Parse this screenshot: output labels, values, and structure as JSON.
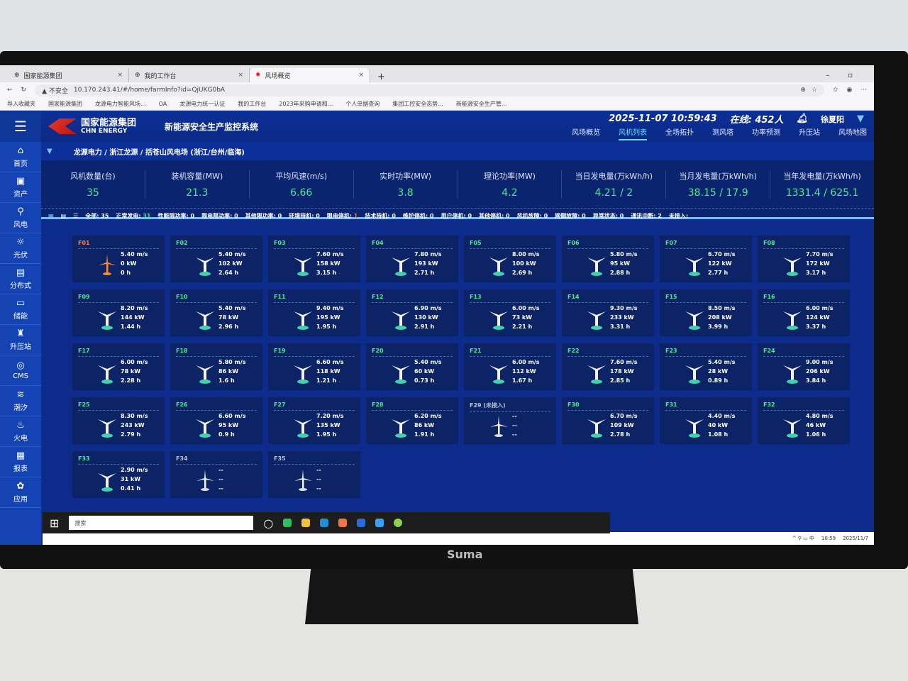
{
  "browser": {
    "tabs": [
      {
        "label": "国家能源集团"
      },
      {
        "label": "我的工作台"
      },
      {
        "label": "风场概览"
      }
    ],
    "insecure": "▲ 不安全",
    "url": "10.170.243.41/#/home/farmInfo?id=QjUKG0bA",
    "bookmarks": [
      "导入收藏夹",
      "国家能源集团",
      "龙源电力智能风场...",
      "OA",
      "龙源电力统一认证",
      "我的工作台",
      "2023年采购申请和...",
      "个人单据查询",
      "集团工控安全态势...",
      "新能源安全生产管..."
    ]
  },
  "header": {
    "logo_cn": "国家能源集团",
    "logo_en": "CHN ENERGY",
    "system": "新能源安全生产监控系统",
    "datetime": "2025-11-07 10:59:43",
    "online": "在线: 452人",
    "user": "徐夏阳"
  },
  "nav": [
    "风场概览",
    "风机列表",
    "全场拓扑",
    "测风塔",
    "功率预测",
    "升压站",
    "风场地图"
  ],
  "nav_active": "风机列表",
  "sidebar": [
    {
      "label": "首页",
      "icon": "home-icon",
      "g": "⌂"
    },
    {
      "label": "资产",
      "icon": "monitor-icon",
      "g": "▣"
    },
    {
      "label": "风电",
      "icon": "wind-turbine-icon",
      "g": "⚲"
    },
    {
      "label": "光伏",
      "icon": "sun-icon",
      "g": "☼"
    },
    {
      "label": "分布式",
      "icon": "solar-panel-icon",
      "g": "▤"
    },
    {
      "label": "储能",
      "icon": "battery-icon",
      "g": "▭"
    },
    {
      "label": "升压站",
      "icon": "substation-icon",
      "g": "♜"
    },
    {
      "label": "CMS",
      "icon": "cms-icon",
      "g": "◎"
    },
    {
      "label": "潮汐",
      "icon": "tide-icon",
      "g": "≋"
    },
    {
      "label": "火电",
      "icon": "thermal-icon",
      "g": "♨"
    },
    {
      "label": "报表",
      "icon": "report-icon",
      "g": "▦"
    },
    {
      "label": "应用",
      "icon": "apps-icon",
      "g": "✿"
    }
  ],
  "breadcrumb": "龙源电力 / 浙江龙源 / 括苍山风电场 (浙江/台州/临海)",
  "stats": [
    {
      "label": "风机数量(台)",
      "value": "35"
    },
    {
      "label": "装机容量(MW)",
      "value": "21.3"
    },
    {
      "label": "平均风速(m/s)",
      "value": "6.66"
    },
    {
      "label": "实时功率(MW)",
      "value": "3.8"
    },
    {
      "label": "理论功率(MW)",
      "value": "4.2"
    },
    {
      "label": "当日发电量(万kWh/h)",
      "value": "4.21 / 2"
    },
    {
      "label": "当月发电量(万kWh/h)",
      "value": "38.15 / 17.9"
    },
    {
      "label": "当年发电量(万kWh/h)",
      "value": "1331.4 / 625.1"
    }
  ],
  "status": [
    {
      "label": "全部:",
      "value": "35",
      "c": ""
    },
    {
      "label": "正常发电:",
      "value": "31",
      "c": "g"
    },
    {
      "label": "性能限功率:",
      "value": "0",
      "c": ""
    },
    {
      "label": "限电限功率:",
      "value": "0",
      "c": ""
    },
    {
      "label": "其他限功率:",
      "value": "0",
      "c": ""
    },
    {
      "label": "环境待机:",
      "value": "0",
      "c": ""
    },
    {
      "label": "限电停机:",
      "value": "1",
      "c": "o"
    },
    {
      "label": "技术待机:",
      "value": "0",
      "c": ""
    },
    {
      "label": "维护停机:",
      "value": "0",
      "c": ""
    },
    {
      "label": "用户停机:",
      "value": "0",
      "c": ""
    },
    {
      "label": "其他停机:",
      "value": "0",
      "c": ""
    },
    {
      "label": "风机故障:",
      "value": "0",
      "c": ""
    },
    {
      "label": "网侧故障:",
      "value": "0",
      "c": ""
    },
    {
      "label": "异常状态:",
      "value": "0",
      "c": ""
    },
    {
      "label": "通讯中断:",
      "value": "2",
      "c": ""
    },
    {
      "label": "未接入:",
      "value": "",
      "c": ""
    }
  ],
  "colors": {
    "normal": "#4dea8e",
    "stopped": "#ff7a3a",
    "offline": "#b8c0d8",
    "accent": "#5ee0ff"
  },
  "turbines": [
    {
      "id": "F01",
      "s": "stopped",
      "v": [
        "5.40 m/s",
        "0 kW",
        "0 h"
      ]
    },
    {
      "id": "F02",
      "s": "normal",
      "v": [
        "5.40 m/s",
        "102 kW",
        "2.64 h"
      ]
    },
    {
      "id": "F03",
      "s": "normal",
      "v": [
        "7.60 m/s",
        "158 kW",
        "3.15 h"
      ]
    },
    {
      "id": "F04",
      "s": "normal",
      "v": [
        "7.80 m/s",
        "193 kW",
        "2.71 h"
      ]
    },
    {
      "id": "F05",
      "s": "normal",
      "v": [
        "8.00 m/s",
        "100 kW",
        "2.69 h"
      ]
    },
    {
      "id": "F06",
      "s": "normal",
      "v": [
        "5.80 m/s",
        "95 kW",
        "2.88 h"
      ]
    },
    {
      "id": "F07",
      "s": "normal",
      "v": [
        "6.70 m/s",
        "122 kW",
        "2.77 h"
      ]
    },
    {
      "id": "F08",
      "s": "normal",
      "v": [
        "7.70 m/s",
        "172 kW",
        "3.17 h"
      ]
    },
    {
      "id": "F09",
      "s": "normal",
      "v": [
        "8.20 m/s",
        "144 kW",
        "1.44 h"
      ]
    },
    {
      "id": "F10",
      "s": "normal",
      "v": [
        "5.40 m/s",
        "78 kW",
        "2.96 h"
      ]
    },
    {
      "id": "F11",
      "s": "normal",
      "v": [
        "9.40 m/s",
        "195 kW",
        "1.95 h"
      ]
    },
    {
      "id": "F12",
      "s": "normal",
      "v": [
        "6.90 m/s",
        "130 kW",
        "2.91 h"
      ]
    },
    {
      "id": "F13",
      "s": "normal",
      "v": [
        "6.00 m/s",
        "73 kW",
        "2.21 h"
      ]
    },
    {
      "id": "F14",
      "s": "normal",
      "v": [
        "9.30 m/s",
        "233 kW",
        "3.31 h"
      ]
    },
    {
      "id": "F15",
      "s": "normal",
      "v": [
        "8.50 m/s",
        "208 kW",
        "3.99 h"
      ]
    },
    {
      "id": "F16",
      "s": "normal",
      "v": [
        "6.00 m/s",
        "124 kW",
        "3.37 h"
      ]
    },
    {
      "id": "F17",
      "s": "normal",
      "v": [
        "6.00 m/s",
        "78 kW",
        "2.28 h"
      ]
    },
    {
      "id": "F18",
      "s": "normal",
      "v": [
        "5.80 m/s",
        "86 kW",
        "1.6 h"
      ]
    },
    {
      "id": "F19",
      "s": "normal",
      "v": [
        "6.60 m/s",
        "118 kW",
        "1.21 h"
      ]
    },
    {
      "id": "F20",
      "s": "normal",
      "v": [
        "5.40 m/s",
        "60 kW",
        "0.73 h"
      ]
    },
    {
      "id": "F21",
      "s": "normal",
      "v": [
        "6.00 m/s",
        "112 kW",
        "1.67 h"
      ]
    },
    {
      "id": "F22",
      "s": "normal",
      "v": [
        "7.60 m/s",
        "178 kW",
        "2.85 h"
      ]
    },
    {
      "id": "F23",
      "s": "normal",
      "v": [
        "5.40 m/s",
        "28 kW",
        "0.89 h"
      ]
    },
    {
      "id": "F24",
      "s": "normal",
      "v": [
        "9.00 m/s",
        "206 kW",
        "3.84 h"
      ]
    },
    {
      "id": "F25",
      "s": "normal",
      "v": [
        "8.30 m/s",
        "243 kW",
        "2.79 h"
      ]
    },
    {
      "id": "F26",
      "s": "normal",
      "v": [
        "6.60 m/s",
        "95 kW",
        "0.9 h"
      ]
    },
    {
      "id": "F27",
      "s": "normal",
      "v": [
        "7.20 m/s",
        "135 kW",
        "1.95 h"
      ]
    },
    {
      "id": "F28",
      "s": "normal",
      "v": [
        "6.20 m/s",
        "86 kW",
        "1.91 h"
      ]
    },
    {
      "id": "F29 (未接入)",
      "s": "offline",
      "v": [
        "--",
        "--",
        "--"
      ]
    },
    {
      "id": "F30",
      "s": "normal",
      "v": [
        "6.70 m/s",
        "109 kW",
        "2.78 h"
      ]
    },
    {
      "id": "F31",
      "s": "normal",
      "v": [
        "4.40 m/s",
        "40 kW",
        "1.08 h"
      ]
    },
    {
      "id": "F32",
      "s": "normal",
      "v": [
        "4.80 m/s",
        "46 kW",
        "1.06 h"
      ]
    },
    {
      "id": "F33",
      "s": "normal",
      "v": [
        "2.90 m/s",
        "31 kW",
        "0.41 h"
      ]
    },
    {
      "id": "F34",
      "s": "offline",
      "v": [
        "--",
        "--",
        "--"
      ]
    },
    {
      "id": "F35",
      "s": "offline",
      "v": [
        "--",
        "--",
        "--"
      ]
    }
  ],
  "taskbar": {
    "search": "搜索",
    "time": "10:59",
    "date": "2025/11/7"
  },
  "monitor_brand": "Suma"
}
